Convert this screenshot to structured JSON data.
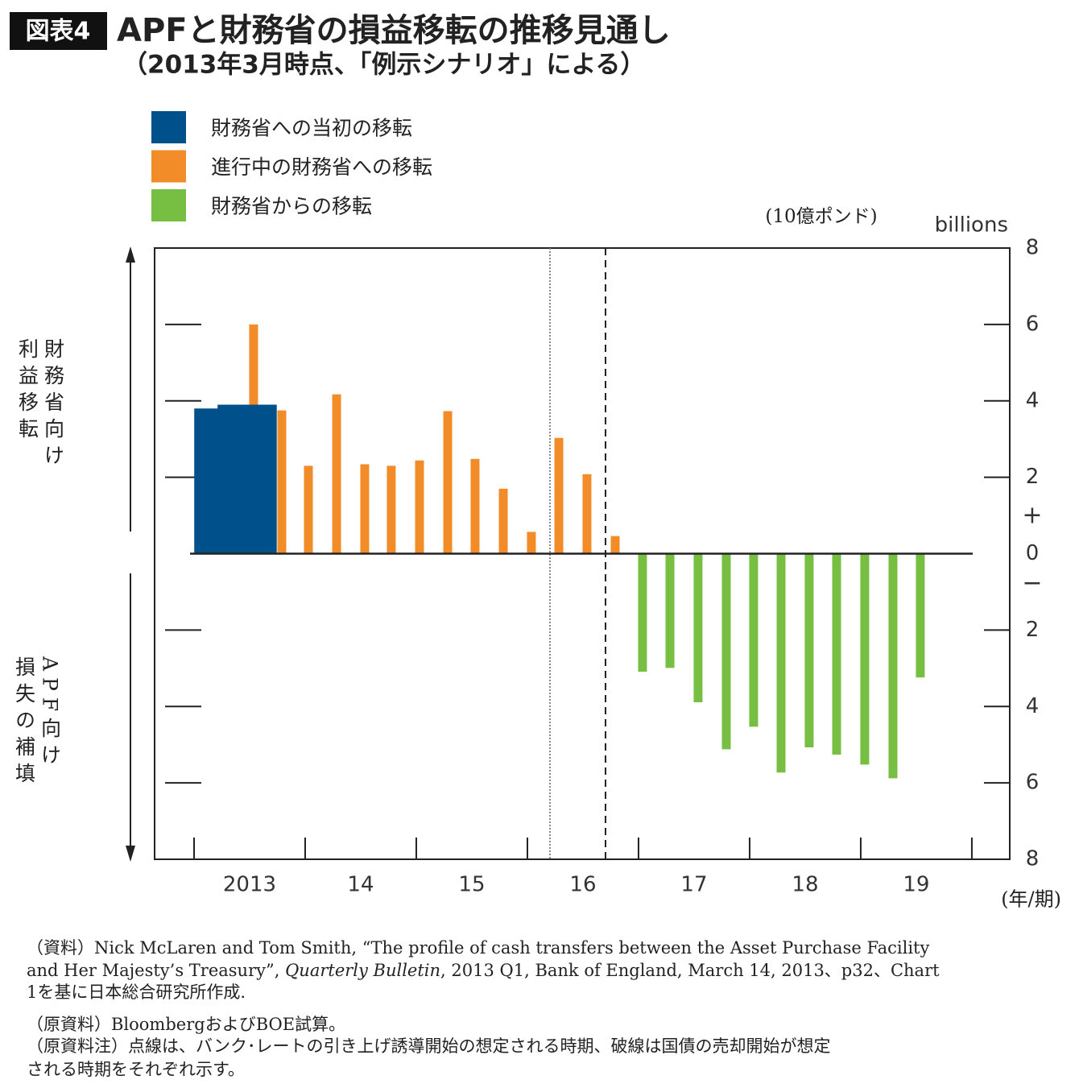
{
  "chart_data": {
    "type": "bar",
    "badge": "図表4",
    "title": "APFと財務省の損益移転の推移見通し",
    "subtitle": "（2013年3月時点、「例示シナリオ」による）",
    "unit_label": "(10億ポンド)",
    "unit_label_en": "billions",
    "x_unit_label": "(年/期)",
    "upper_side_label": [
      "財務省向け",
      "利益移転"
    ],
    "lower_side_label": [
      "APF向け",
      "損失の補填"
    ],
    "plus_sign": "+",
    "minus_sign": "−",
    "xlim": [
      2012.645,
      2020.341
    ],
    "xticks": [
      {
        "value": 2013.5,
        "label": "2013"
      },
      {
        "value": 2014.5,
        "label": "14"
      },
      {
        "value": 2015.5,
        "label": "15"
      },
      {
        "value": 2016.5,
        "label": "16"
      },
      {
        "value": 2017.5,
        "label": "17"
      },
      {
        "value": 2018.5,
        "label": "18"
      },
      {
        "value": 2019.5,
        "label": "19"
      }
    ],
    "ylim": [
      -8,
      8
    ],
    "yticks": [
      {
        "value": -8,
        "label": "8"
      },
      {
        "value": -6,
        "label": "6"
      },
      {
        "value": -4,
        "label": "4"
      },
      {
        "value": -2,
        "label": "2"
      },
      0,
      2,
      4,
      6,
      8
    ],
    "vlines": [
      {
        "x": 2016.203,
        "style": "dotted"
      },
      {
        "x": 2016.703,
        "style": "dashed"
      }
    ],
    "series": [
      {
        "name": "財務省への当初の移転",
        "color": "#00508c",
        "x": [
          2013.058,
          2013.167,
          2013.268,
          2013.377,
          2013.478,
          2013.587,
          2013.688
        ],
        "values": [
          3.8,
          3.8,
          3.9,
          3.9,
          3.9,
          3.9,
          3.9
        ]
      },
      {
        "name": "進行中の財務省への移転",
        "color": "#f28c28",
        "x": [
          2013.536,
          2013.79,
          2014.029,
          2014.283,
          2014.536,
          2014.775,
          2015.029,
          2015.283,
          2015.529,
          2015.783,
          2016.036,
          2016.283,
          2016.536,
          2016.79
        ],
        "values": [
          6.0,
          3.75,
          2.3,
          4.17,
          2.34,
          2.3,
          2.44,
          3.73,
          2.48,
          1.7,
          0.57,
          3.03,
          2.08,
          0.46
        ]
      },
      {
        "name": "財務省からの移転",
        "color": "#76bf43",
        "x": [
          2017.036,
          2017.283,
          2017.536,
          2017.79,
          2018.036,
          2018.283,
          2018.536,
          2018.783,
          2019.036,
          2019.29,
          2019.536
        ],
        "values": [
          -3.09,
          -2.99,
          -3.89,
          -5.12,
          -4.53,
          -5.73,
          -5.07,
          -5.26,
          -5.52,
          -5.88,
          -3.24
        ]
      }
    ],
    "notes": [
      "（資料）Nick McLaren and Tom Smith, “The profile of cash transfers between the Asset Purchase Facility",
      [
        "and Her Majesty’s Treasury”, ",
        "Quarterly Bulletin",
        ", 2013 Q1, Bank of England, March 14, 2013、p32、Chart"
      ],
      "1を基に日本総合研究所作成.",
      "（原資料）BloombergおよびBOE試算。",
      "（原資料注）点線は、バンク･レートの引き上げ誘導開始の想定される時期、破線は国債の売却開始が想定",
      "される時期をそれぞれ示す。"
    ]
  }
}
